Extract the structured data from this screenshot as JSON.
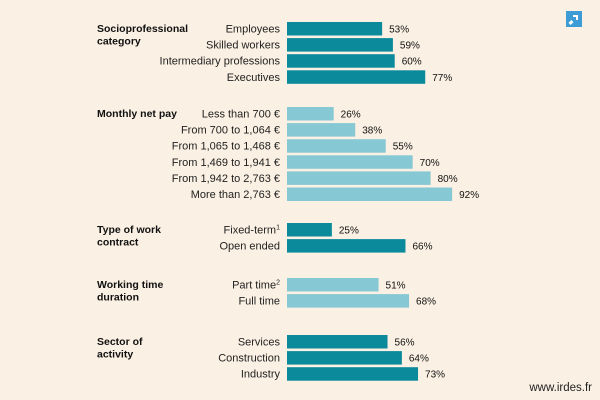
{
  "source_text": "www.irdes.fr",
  "colors": {
    "dark": "#0b8a9c",
    "light": "#86c8d4",
    "background": "#faf0e3"
  },
  "chart_data": {
    "type": "bar",
    "orientation": "horizontal",
    "xlim": [
      0,
      100
    ],
    "value_suffix": "%",
    "groups": [
      {
        "title": "Socioprofessional category",
        "color": "dark",
        "categories": [
          {
            "label": "Employees",
            "value": 53
          },
          {
            "label": "Skilled workers",
            "value": 59
          },
          {
            "label": "Intermediary professions",
            "value": 60
          },
          {
            "label": "Executives",
            "value": 77
          }
        ]
      },
      {
        "title": "Monthly net pay",
        "color": "light",
        "categories": [
          {
            "label": "Less than 700 €",
            "value": 26
          },
          {
            "label": "From 700 to 1,064 €",
            "value": 38
          },
          {
            "label": "From 1,065 to 1,468 €",
            "value": 55
          },
          {
            "label": "From 1,469 to 1,941 €",
            "value": 70
          },
          {
            "label": "From 1,942 to 2,763 €",
            "value": 80
          },
          {
            "label": "More than 2,763 €",
            "value": 92
          }
        ]
      },
      {
        "title": "Type of work contract",
        "color": "dark",
        "categories": [
          {
            "label": "Fixed-term",
            "sup": "1",
            "value": 25
          },
          {
            "label": "Open ended",
            "value": 66
          }
        ]
      },
      {
        "title": "Working time duration",
        "color": "light",
        "categories": [
          {
            "label": "Part time",
            "sup": "2",
            "value": 51
          },
          {
            "label": "Full time",
            "value": 68
          }
        ]
      },
      {
        "title": "Sector of activity",
        "color": "dark",
        "categories": [
          {
            "label": "Services",
            "value": 56
          },
          {
            "label": "Construction",
            "value": 64
          },
          {
            "label": "Industry",
            "value": 73
          }
        ]
      }
    ]
  }
}
